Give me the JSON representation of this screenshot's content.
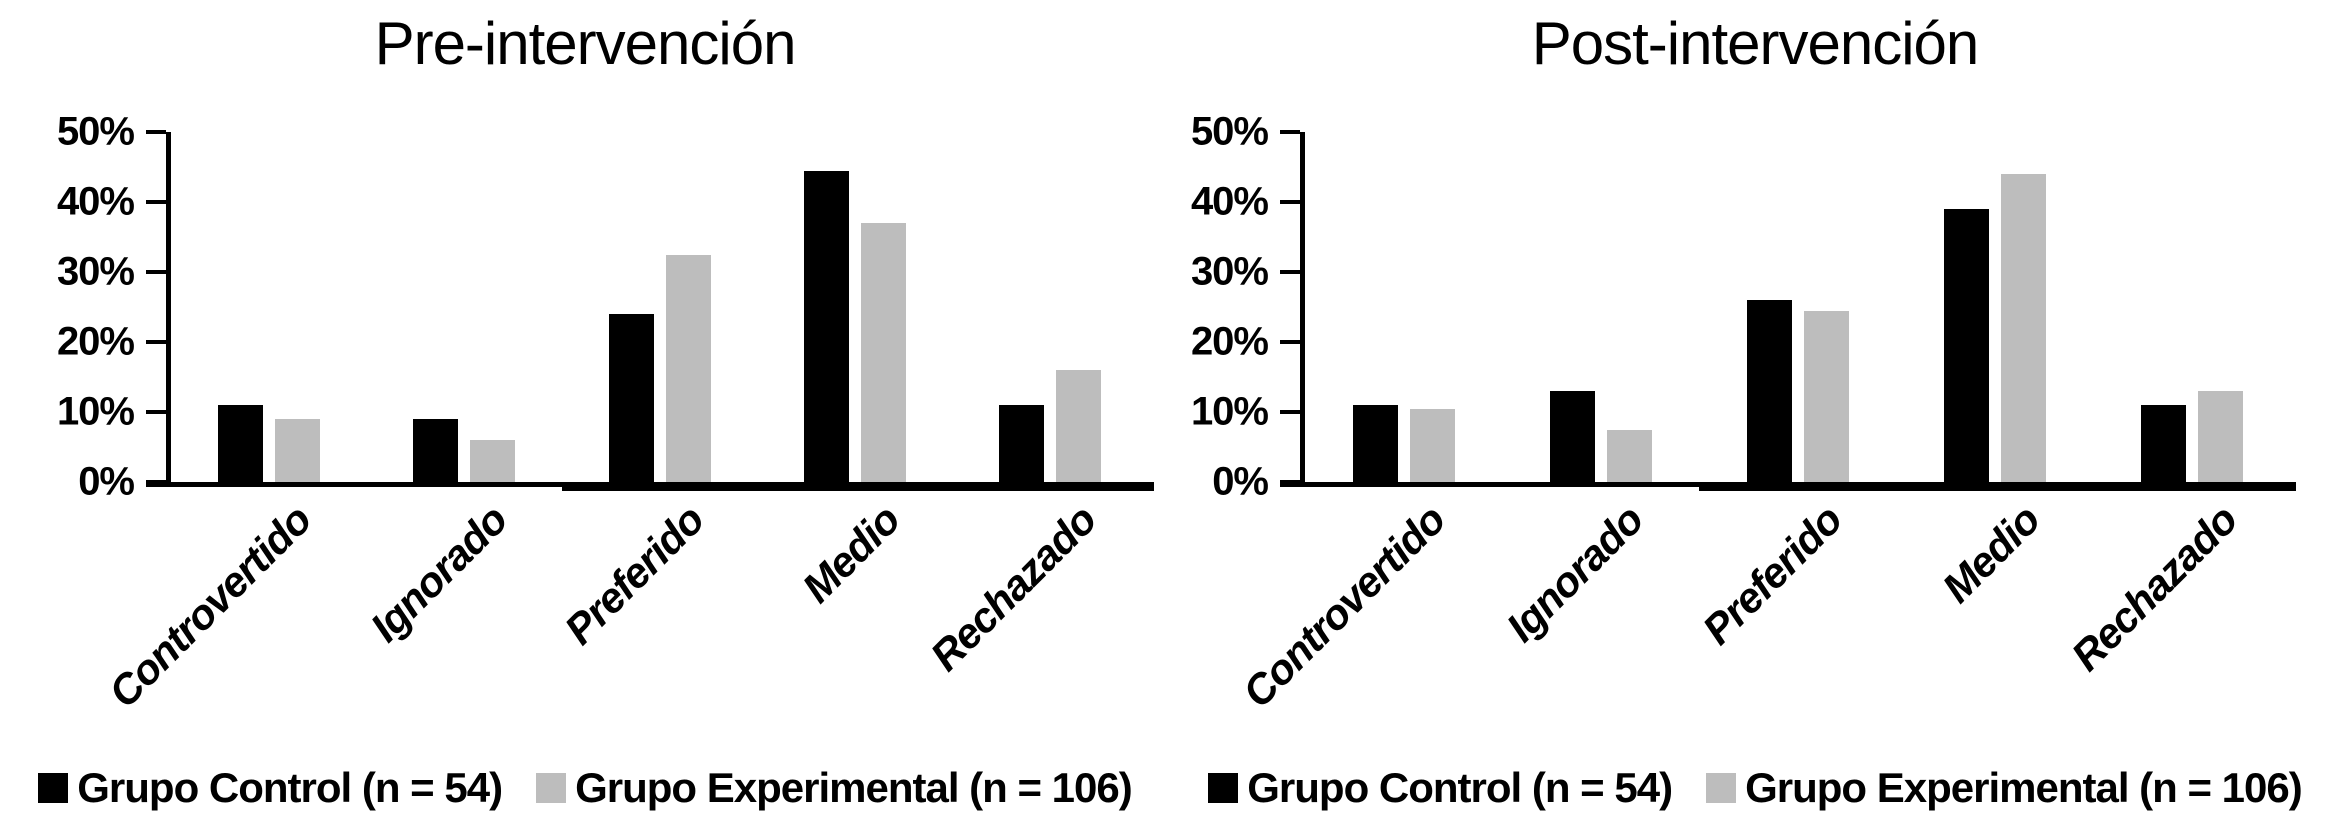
{
  "colors": {
    "control": "#000000",
    "experimental": "#BDBDBD",
    "axis": "#000000",
    "background": "#FFFFFF"
  },
  "chart_data": [
    {
      "type": "bar",
      "title": "Pre-intervención",
      "categories": [
        "Controvertido",
        "Ignorado",
        "Preferido",
        "Medio",
        "Rechazado"
      ],
      "series": [
        {
          "name": "Grupo Control (n = 54)",
          "color": "#000000",
          "values": [
            11,
            9,
            24,
            44.5,
            11
          ]
        },
        {
          "name": "Grupo Experimental (n = 106)",
          "color": "#BDBDBD",
          "values": [
            9,
            6,
            32.5,
            37,
            16
          ]
        }
      ],
      "xlabel": "",
      "ylabel": "",
      "ylim": [
        0,
        50
      ],
      "yticks": [
        "0%",
        "10%",
        "20%",
        "30%",
        "40%",
        "50%"
      ],
      "grid": false,
      "legend_position": "bottom"
    },
    {
      "type": "bar",
      "title": "Post-intervención",
      "categories": [
        "Controvertido",
        "Ignorado",
        "Preferido",
        "Medio",
        "Rechazado"
      ],
      "series": [
        {
          "name": "Grupo Control (n = 54)",
          "color": "#000000",
          "values": [
            11,
            13,
            26,
            39,
            11
          ]
        },
        {
          "name": "Grupo Experimental (n = 106)",
          "color": "#BDBDBD",
          "values": [
            10.5,
            7.5,
            24.5,
            44,
            13
          ]
        }
      ],
      "xlabel": "",
      "ylabel": "",
      "ylim": [
        0,
        50
      ],
      "yticks": [
        "0%",
        "10%",
        "20%",
        "30%",
        "40%",
        "50%"
      ],
      "grid": false,
      "legend_position": "bottom"
    }
  ]
}
